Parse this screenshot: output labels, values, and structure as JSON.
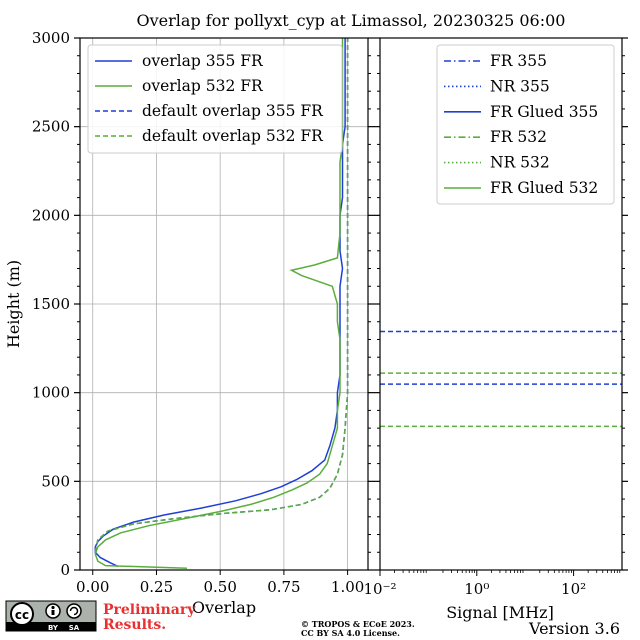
{
  "title": "Overlap for pollyxt_cyp at Limassol, 20230325 06:00",
  "colors": {
    "blue": "#1f3fd6",
    "green": "#5aae3c",
    "grid": "#b0b0b0"
  },
  "chart_data": [
    {
      "type": "line",
      "xlabel": "Overlap",
      "ylabel": "Height (m)",
      "xlim": [
        -0.05,
        1.08
      ],
      "ylim": [
        0,
        3000
      ],
      "xticks": [
        "0.00",
        "0.25",
        "0.50",
        "0.75",
        "1.00"
      ],
      "xtick_values": [
        0,
        0.25,
        0.5,
        0.75,
        1.0
      ],
      "yticks": [
        "0",
        "500",
        "1000",
        "1500",
        "2000",
        "2500",
        "3000"
      ],
      "ytick_values": [
        0,
        500,
        1000,
        1500,
        2000,
        2500,
        3000
      ],
      "grid": true,
      "legend_position": "top-right",
      "series": [
        {
          "name": "overlap 355 FR",
          "color": "#1f3fd6",
          "style": "solid",
          "points": [
            [
              0.1,
              20
            ],
            [
              0.07,
              40
            ],
            [
              0.03,
              70
            ],
            [
              0.01,
              100
            ],
            [
              0.01,
              130
            ],
            [
              0.02,
              160
            ],
            [
              0.04,
              190
            ],
            [
              0.08,
              230
            ],
            [
              0.16,
              270
            ],
            [
              0.28,
              310
            ],
            [
              0.43,
              350
            ],
            [
              0.56,
              390
            ],
            [
              0.66,
              430
            ],
            [
              0.74,
              470
            ],
            [
              0.8,
              510
            ],
            [
              0.86,
              560
            ],
            [
              0.91,
              620
            ],
            [
              0.93,
              700
            ],
            [
              0.95,
              800
            ],
            [
              0.96,
              900
            ],
            [
              0.96,
              1000
            ],
            [
              0.97,
              1100
            ],
            [
              0.97,
              1200
            ],
            [
              0.97,
              1300
            ],
            [
              0.97,
              1400
            ],
            [
              0.97,
              1500
            ],
            [
              0.97,
              1600
            ],
            [
              0.98,
              1700
            ],
            [
              0.97,
              1800
            ],
            [
              0.97,
              1900
            ],
            [
              0.97,
              2000
            ],
            [
              0.98,
              2100
            ],
            [
              0.98,
              2200
            ],
            [
              0.98,
              2300
            ],
            [
              0.98,
              2400
            ],
            [
              0.99,
              2500
            ],
            [
              0.99,
              2600
            ],
            [
              0.99,
              2700
            ],
            [
              0.99,
              2800
            ],
            [
              0.99,
              2900
            ],
            [
              0.99,
              3000
            ]
          ]
        },
        {
          "name": "overlap 532 FR",
          "color": "#5aae3c",
          "style": "solid",
          "points": [
            [
              0.37,
              10
            ],
            [
              0.05,
              25
            ],
            [
              0.02,
              50
            ],
            [
              0.01,
              90
            ],
            [
              0.02,
              130
            ],
            [
              0.05,
              170
            ],
            [
              0.11,
              210
            ],
            [
              0.22,
              250
            ],
            [
              0.36,
              290
            ],
            [
              0.5,
              330
            ],
            [
              0.62,
              370
            ],
            [
              0.71,
              410
            ],
            [
              0.78,
              450
            ],
            [
              0.84,
              490
            ],
            [
              0.89,
              540
            ],
            [
              0.92,
              600
            ],
            [
              0.94,
              700
            ],
            [
              0.96,
              800
            ],
            [
              0.96,
              900
            ],
            [
              0.97,
              1000
            ],
            [
              0.97,
              1100
            ],
            [
              0.97,
              1200
            ],
            [
              0.97,
              1300
            ],
            [
              0.96,
              1400
            ],
            [
              0.96,
              1500
            ],
            [
              0.94,
              1600
            ],
            [
              0.82,
              1660
            ],
            [
              0.78,
              1690
            ],
            [
              0.87,
              1720
            ],
            [
              0.96,
              1760
            ],
            [
              0.97,
              1900
            ],
            [
              0.97,
              2000
            ],
            [
              0.97,
              2100
            ],
            [
              0.97,
              2200
            ],
            [
              0.97,
              2300
            ],
            [
              0.98,
              2400
            ],
            [
              0.98,
              2500
            ],
            [
              0.98,
              2600
            ],
            [
              0.98,
              2700
            ],
            [
              0.98,
              2800
            ],
            [
              0.98,
              2900
            ],
            [
              0.98,
              3000
            ]
          ]
        },
        {
          "name": "default overlap 355 FR",
          "color": "#1f3fd6",
          "style": "dashed",
          "points": [
            [
              0.01,
              100
            ],
            [
              0.02,
              170
            ],
            [
              0.06,
              220
            ],
            [
              0.16,
              260
            ],
            [
              0.32,
              290
            ],
            [
              0.52,
              320
            ],
            [
              0.7,
              340
            ],
            [
              0.82,
              370
            ],
            [
              0.89,
              410
            ],
            [
              0.93,
              460
            ],
            [
              0.96,
              540
            ],
            [
              0.98,
              650
            ],
            [
              0.99,
              800
            ],
            [
              1.0,
              1000
            ],
            [
              1.0,
              1500
            ],
            [
              1.0,
              2000
            ],
            [
              1.0,
              2500
            ],
            [
              1.0,
              3000
            ]
          ]
        },
        {
          "name": "default overlap 532 FR",
          "color": "#5aae3c",
          "style": "dashed",
          "points": [
            [
              0.01,
              100
            ],
            [
              0.02,
              170
            ],
            [
              0.06,
              220
            ],
            [
              0.16,
              260
            ],
            [
              0.32,
              290
            ],
            [
              0.52,
              320
            ],
            [
              0.7,
              340
            ],
            [
              0.82,
              370
            ],
            [
              0.89,
              410
            ],
            [
              0.93,
              460
            ],
            [
              0.96,
              540
            ],
            [
              0.98,
              650
            ],
            [
              0.99,
              800
            ],
            [
              1.0,
              1000
            ],
            [
              1.0,
              1500
            ],
            [
              1.0,
              2000
            ],
            [
              1.0,
              2500
            ],
            [
              1.0,
              3000
            ]
          ]
        }
      ]
    },
    {
      "type": "line",
      "xlabel": "Signal [MHz]",
      "xscale": "log",
      "xlim": [
        0.01,
        1000
      ],
      "ylim": [
        0,
        3000
      ],
      "xticks": [
        "10⁻²",
        "10⁰",
        "10²"
      ],
      "xtick_values": [
        0.01,
        1,
        100
      ],
      "grid": false,
      "legend_position": "top-right",
      "legend": [
        {
          "name": "FR 355",
          "color": "#1f3fd6",
          "style": "dashdot"
        },
        {
          "name": "NR 355",
          "color": "#1f3fd6",
          "style": "dotted"
        },
        {
          "name": "FR Glued 355",
          "color": "#1f3fd6",
          "style": "solid"
        },
        {
          "name": "FR 532",
          "color": "#5aae3c",
          "style": "dashdot"
        },
        {
          "name": "NR 532",
          "color": "#5aae3c",
          "style": "dotted"
        },
        {
          "name": "FR Glued 532",
          "color": "#5aae3c",
          "style": "solid"
        }
      ],
      "hlines": [
        {
          "y": 1345,
          "color": "#1f3fd6"
        },
        {
          "y": 1048,
          "color": "#1f3fd6"
        },
        {
          "y": 1110,
          "color": "#5aae3c"
        },
        {
          "y": 810,
          "color": "#5aae3c"
        }
      ]
    }
  ],
  "footer": {
    "cc_text": "cc",
    "by_text": "BY",
    "sa_text": "SA",
    "preliminary": "Preliminary",
    "results": "Results.",
    "copyright_line1": "© TROPOS & ECoE 2023.",
    "copyright_line2": "CC BY SA 4.0 License.",
    "version": "Version 3.6"
  }
}
